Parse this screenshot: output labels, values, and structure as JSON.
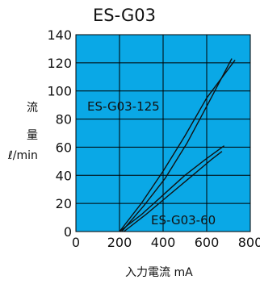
{
  "chart_data": {
    "type": "line",
    "title": "ES-G03",
    "xlabel": "入力電流 mA",
    "ylabel": [
      "流",
      "量",
      "ℓ/min"
    ],
    "xlim": [
      0,
      800
    ],
    "ylim": [
      0,
      140
    ],
    "x_ticks": [
      "0",
      "200",
      "400",
      "600",
      "800"
    ],
    "y_ticks": [
      "0",
      "20",
      "40",
      "60",
      "80",
      "100",
      "120",
      "140"
    ],
    "grid": true,
    "colors": {
      "plot_background": "#0aa8e6",
      "grid": "#000000",
      "line": "#111111"
    },
    "series": [
      {
        "name": "ES-G03-125",
        "x": [
          200,
          300,
          400,
          500,
          600,
          730
        ],
        "y": [
          0,
          20,
          43,
          68,
          95,
          122
        ]
      },
      {
        "x": [
          210,
          310,
          410,
          510,
          610,
          715
        ],
        "y": [
          0,
          18,
          38,
          63,
          92,
          123
        ]
      },
      {
        "name": "ES-G03-60",
        "x": [
          200,
          300,
          400,
          500,
          600,
          680
        ],
        "y": [
          0,
          12,
          26,
          40,
          52,
          61
        ]
      },
      {
        "x": [
          220,
          320,
          420,
          520,
          620,
          670
        ],
        "y": [
          0,
          12,
          25,
          38,
          51,
          57
        ]
      }
    ]
  }
}
